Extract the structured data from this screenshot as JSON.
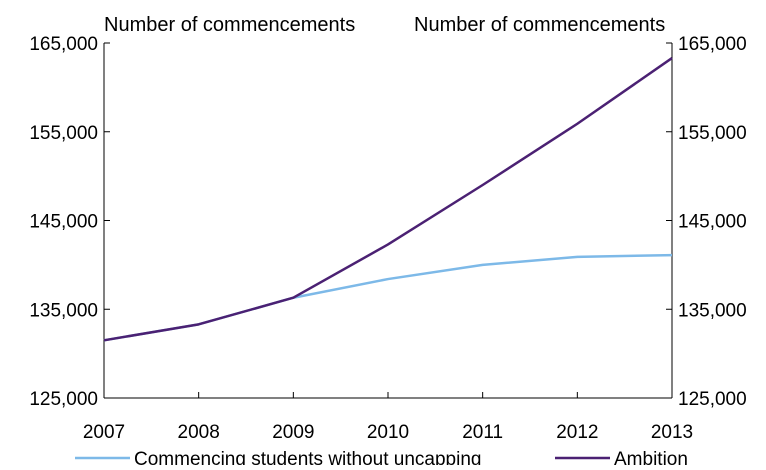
{
  "chart_data": {
    "type": "line",
    "left_axis_label": "Number of commencements",
    "right_axis_label": "Number of commencements",
    "categories": [
      "2007",
      "2008",
      "2009",
      "2010",
      "2011",
      "2012",
      "2013"
    ],
    "y_ticks": [
      "125,000",
      "135,000",
      "145,000",
      "155,000",
      "165,000"
    ],
    "ylim": [
      125000,
      165000
    ],
    "grid": false,
    "legend_position": "bottom",
    "series": [
      {
        "name": "Commencing students without uncapping",
        "color": "#7db9e8",
        "values": [
          131500,
          133300,
          136300,
          138400,
          140000,
          140900,
          141100
        ]
      },
      {
        "name": "Ambition",
        "color": "#4b2173",
        "values": [
          131500,
          133300,
          136300,
          142300,
          149000,
          155900,
          163300
        ]
      }
    ]
  }
}
